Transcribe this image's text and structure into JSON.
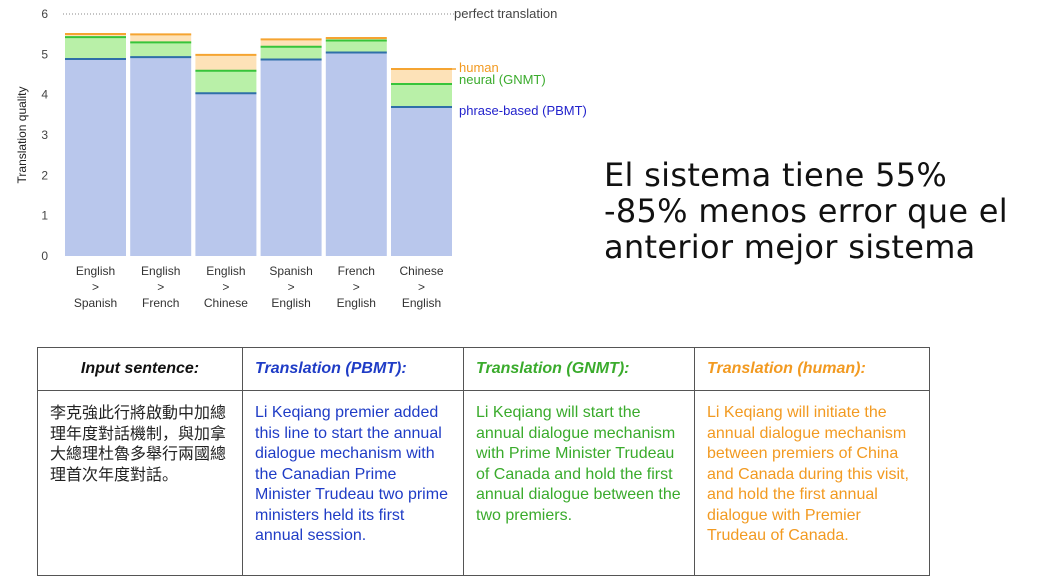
{
  "chart_data": {
    "type": "bar",
    "title": "",
    "ylabel": "Translation quality",
    "ylim": [
      0,
      6
    ],
    "yticks": [
      0,
      1,
      2,
      3,
      4,
      5,
      6
    ],
    "categories": [
      [
        "English",
        ">",
        "Spanish"
      ],
      [
        "English",
        ">",
        "French"
      ],
      [
        "English",
        ">",
        "Chinese"
      ],
      [
        "Spanish",
        ">",
        "English"
      ],
      [
        "French",
        ">",
        "English"
      ],
      [
        "Chinese",
        ">",
        "English"
      ]
    ],
    "series": [
      {
        "name": "phrase-based (PBMT)",
        "values": [
          4.885,
          4.932,
          4.035,
          4.872,
          5.046,
          3.694
        ]
      },
      {
        "name": "neural (GNMT)",
        "values": [
          5.428,
          5.295,
          4.594,
          5.187,
          5.343,
          4.263
        ]
      },
      {
        "name": "human",
        "values": [
          5.504,
          5.496,
          4.987,
          5.372,
          5.404,
          4.636
        ]
      }
    ],
    "reference_line": {
      "value": 6,
      "label": "perfect translation"
    },
    "colors": {
      "pbmt_fill": "#b9c7ec",
      "pbmt_line": "#2f6fa8",
      "gnmt_fill": "#b9f0a8",
      "gnmt_line": "#37c43a",
      "human_fill": "#fde2b8",
      "human_line": "#f5a431",
      "label_pbmt": "#2222cc",
      "label_gnmt": "#3aab2c",
      "label_human": "#f29a21"
    }
  },
  "headline": "El sistema tiene 55%\n-85% menos error que el\nanterior mejor sistema",
  "table": {
    "headers": [
      "Input sentence:",
      "Translation (PBMT):",
      "Translation (GNMT):",
      "Translation (human):"
    ],
    "source": "李克強此行將啟動中加總理年度對話機制，與加拿大總理杜魯多舉行兩國總理首次年度對話。",
    "pbmt": "Li Keqiang premier added this line to start the annual dialogue mechanism with the Canadian Prime Minister Trudeau two prime ministers held its first annual session.",
    "gnmt": "Li Keqiang will start the annual dialogue mechanism with Prime Minister Trudeau of Canada and hold the first annual dialogue between the two premiers.",
    "human": "Li Keqiang will initiate the annual dialogue mechanism between premiers of China and Canada during this visit, and hold the first annual dialogue with Premier Trudeau of Canada."
  }
}
